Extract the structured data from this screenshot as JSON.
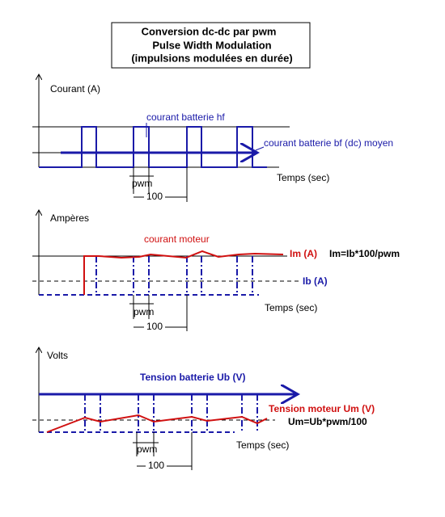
{
  "title": [
    "Conversion dc-dc par pwm",
    "Pulse Width Modulation",
    "(impulsions modulées en durée)"
  ],
  "panels": [
    {
      "axis_label": "Courant (A)",
      "labels": [
        "courant batterie hf",
        "courant batterie bf (dc) moyen"
      ],
      "x_label": "Temps (sec)",
      "pwm": "pwm",
      "period": "100"
    },
    {
      "axis_label": "Ampères",
      "labels": [
        "courant moteur",
        "Im (A)",
        "Im=Ib*100/pwm",
        "Ib (A)"
      ],
      "x_label": "Temps (sec)",
      "pwm": "pwm",
      "period": "100"
    },
    {
      "axis_label": "Volts",
      "labels": [
        "Tension batterie Ub (V)",
        "Tension moteur Um (V)",
        "Um=Ub*pwm/100"
      ],
      "x_label": "Temps (sec)",
      "pwm": "pwm",
      "period": "100"
    }
  ]
}
